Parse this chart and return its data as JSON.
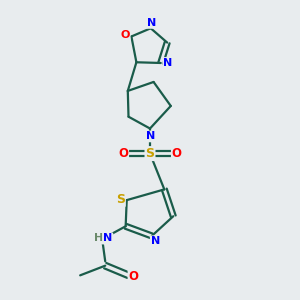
{
  "background_color": "#e8ecee",
  "bond_color": "#1a5c4a",
  "atom_colors": {
    "N": "#0000ff",
    "O": "#ff0000",
    "S_thio": "#c8a000",
    "S_sulfonyl": "#c8a000",
    "H": "#6a8a6a",
    "C": "#1a5c4a"
  },
  "figsize": [
    3.0,
    3.0
  ],
  "dpi": 100,
  "lw": 1.6,
  "off": 0.006
}
